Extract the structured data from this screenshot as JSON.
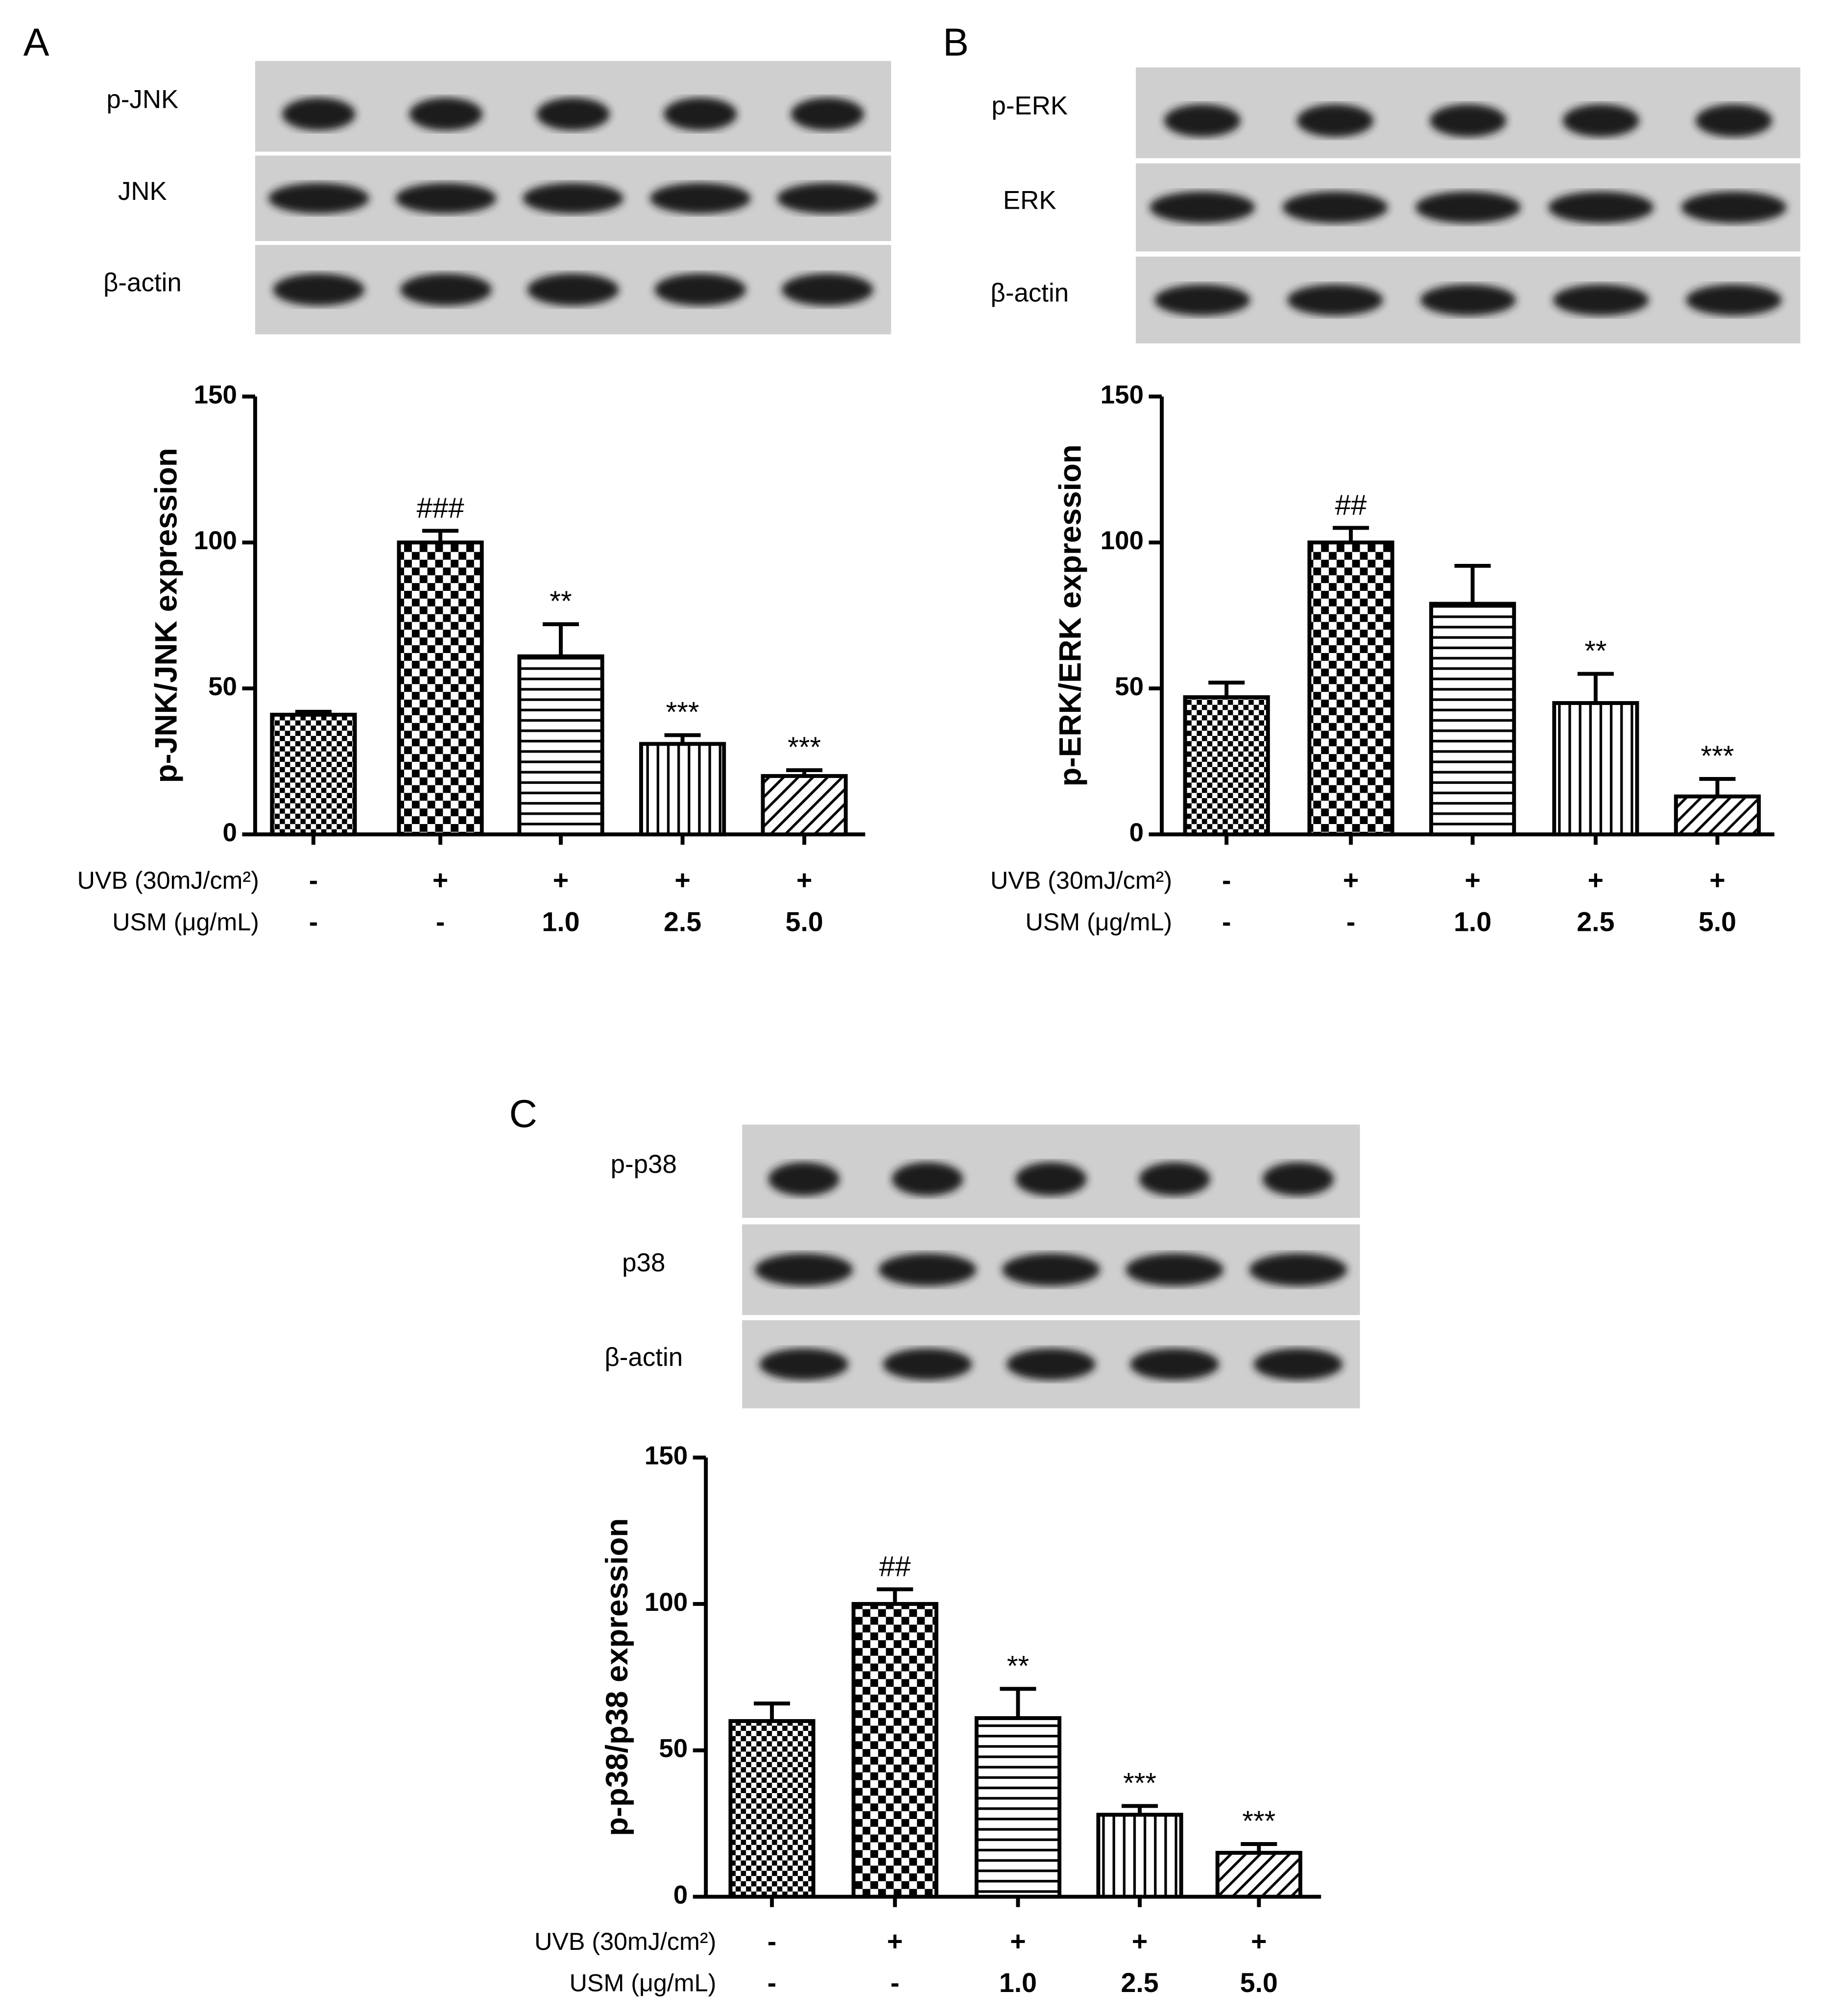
{
  "chart_data": [
    {
      "type": "bar",
      "panel": "A",
      "blot_labels": [
        "p-JNK",
        "JNK",
        "β-actin"
      ],
      "y_label": "p-JNK/JNK expression",
      "ylim": [
        0,
        150
      ],
      "yticks": [
        0,
        50,
        100,
        150
      ],
      "values": [
        41,
        100,
        61,
        31,
        20
      ],
      "errors": [
        1,
        4,
        11,
        3,
        2
      ],
      "annotations": [
        null,
        "###",
        "**",
        "***",
        "***"
      ],
      "conditions": [
        {
          "label": "UVB (30mJ/cm²)",
          "values": [
            "-",
            "+",
            "+",
            "+",
            "+"
          ]
        },
        {
          "label": "USM (μg/mL)",
          "values": [
            "-",
            "-",
            "1.0",
            "2.5",
            "5.0"
          ]
        }
      ]
    },
    {
      "type": "bar",
      "panel": "B",
      "blot_labels": [
        "p-ERK",
        "ERK",
        "β-actin"
      ],
      "y_label": "p-ERK/ERK expression",
      "ylim": [
        0,
        150
      ],
      "yticks": [
        0,
        50,
        100,
        150
      ],
      "values": [
        47,
        100,
        79,
        45,
        13
      ],
      "errors": [
        5,
        5,
        13,
        10,
        6
      ],
      "annotations": [
        null,
        "##",
        null,
        "**",
        "***"
      ],
      "conditions": [
        {
          "label": "UVB (30mJ/cm²)",
          "values": [
            "-",
            "+",
            "+",
            "+",
            "+"
          ]
        },
        {
          "label": "USM (μg/mL)",
          "values": [
            "-",
            "-",
            "1.0",
            "2.5",
            "5.0"
          ]
        }
      ]
    },
    {
      "type": "bar",
      "panel": "C",
      "blot_labels": [
        "p-p38",
        "p38",
        "β-actin"
      ],
      "y_label": "p-p38/p38 expression",
      "ylim": [
        0,
        150
      ],
      "yticks": [
        0,
        50,
        100,
        150
      ],
      "values": [
        60,
        100,
        61,
        28,
        15
      ],
      "errors": [
        6,
        5,
        10,
        3,
        3
      ],
      "annotations": [
        null,
        "##",
        "**",
        "***",
        "***"
      ],
      "conditions": [
        {
          "label": "UVB (30mJ/cm²)",
          "values": [
            "-",
            "+",
            "+",
            "+",
            "+"
          ]
        },
        {
          "label": "USM (μg/mL)",
          "values": [
            "-",
            "-",
            "1.0",
            "2.5",
            "5.0"
          ]
        }
      ]
    }
  ]
}
